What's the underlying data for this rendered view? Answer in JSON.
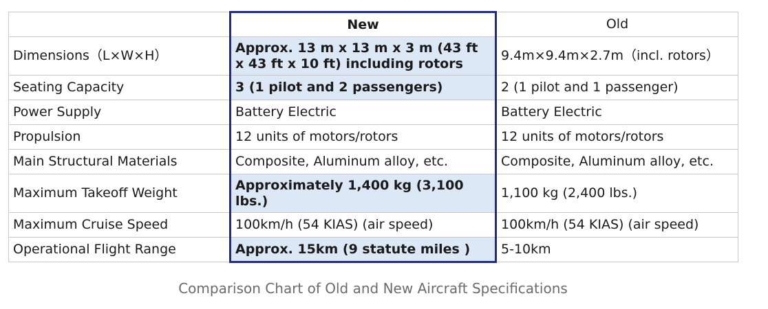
{
  "table": {
    "headers": {
      "label": "",
      "new": "New",
      "old": "Old"
    },
    "rows": [
      {
        "label": "Dimensions（L×W×H）",
        "new": "Approx. 13 m x 13 m x 3 m (43 ft x 43 ft x 10 ft) including rotors",
        "old": "9.4m×9.4m×2.7m（incl. rotors）",
        "highlight": true
      },
      {
        "label": "Seating Capacity",
        "new": "3 (1 pilot and 2 passengers)",
        "old": "2 (1 pilot and 1 passenger)",
        "highlight": true
      },
      {
        "label": "Power Supply",
        "new": "Battery Electric",
        "old": "Battery Electric",
        "highlight": false
      },
      {
        "label": "Propulsion",
        "new": "12 units of motors/rotors",
        "old": "12 units of motors/rotors",
        "highlight": false
      },
      {
        "label": "Main Structural Materials",
        "new": "Composite, Aluminum alloy, etc.",
        "old": "Composite, Aluminum alloy, etc.",
        "highlight": false
      },
      {
        "label": "Maximum Takeoff Weight",
        "new": "Approximately 1,400 kg (3,100 lbs.)",
        "old": "1,100 kg (2,400 lbs.)",
        "highlight": true
      },
      {
        "label": "Maximum Cruise Speed",
        "new": "100km/h (54 KIAS) (air speed)",
        "old": "100km/h (54 KIAS) (air speed)",
        "highlight": false
      },
      {
        "label": "Operational Flight Range",
        "new": "Approx. 15km (9 statute miles )",
        "old": "5-10km",
        "highlight": true
      }
    ]
  },
  "caption": "Comparison Chart of Old and New Aircraft Specifications",
  "colors": {
    "highlight_bg": "#dde8f6",
    "new_border": "#1f2a8a",
    "grid": "#c8c8c8",
    "caption": "#6b6b6b"
  }
}
